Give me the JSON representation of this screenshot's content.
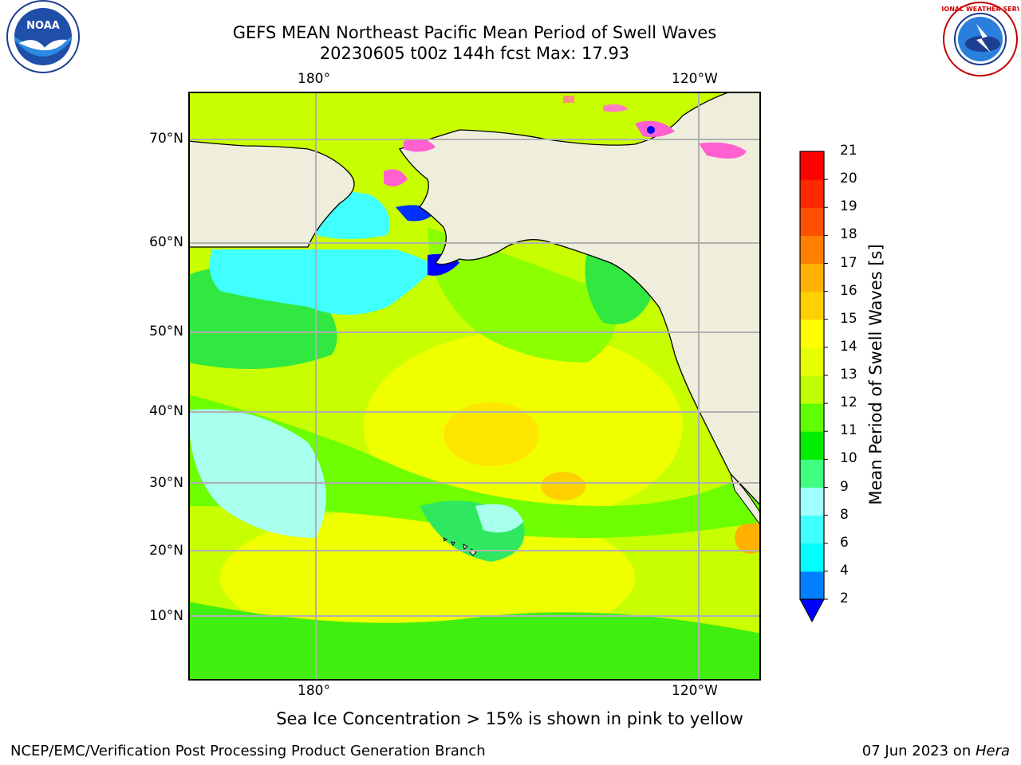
{
  "title": {
    "line1": "GEFS MEAN Northeast Pacific Mean Period of Swell Waves",
    "line2": "20230605 t00z 144h fcst   Max: 17.93"
  },
  "logos": {
    "left": {
      "icon": "noaa-logo",
      "text": "NOAA"
    },
    "right": {
      "icon": "nws-logo",
      "text": "NATIONAL WEATHER SERVICE"
    }
  },
  "map": {
    "lon_labels_top": [
      "180°",
      "120°W"
    ],
    "lon_labels_bottom": [
      "180°",
      "120°W"
    ],
    "lat_labels": [
      "70°N",
      "60°N",
      "50°N",
      "40°N",
      "30°N",
      "20°N",
      "10°N"
    ],
    "land_color": "#efeedc",
    "grid_color": "#b0b0b0"
  },
  "colorbar": {
    "label": "Mean Period of Swell Waves [s]",
    "ticks": [
      "2",
      "4",
      "6",
      "8",
      "9",
      "10",
      "11",
      "12",
      "13",
      "14",
      "15",
      "16",
      "17",
      "18",
      "19",
      "20",
      "21"
    ],
    "colors": [
      "#0000ff",
      "#0080ff",
      "#00ffff",
      "#40ffff",
      "#a0ffff",
      "#40ff80",
      "#00ee00",
      "#60ff00",
      "#c0ff00",
      "#e8ff00",
      "#ffff00",
      "#ffd000",
      "#ffb000",
      "#ff8000",
      "#ff5000",
      "#ff2800",
      "#ff0000"
    ],
    "extend_min_color": "#0000ff"
  },
  "note": "Sea Ice Concentration > 15% is shown in pink to yellow",
  "footer": {
    "left": "NCEP/EMC/Verification Post Processing Product Generation Branch",
    "right_prefix": "07 Jun 2023 on ",
    "right_host": "Hera"
  }
}
